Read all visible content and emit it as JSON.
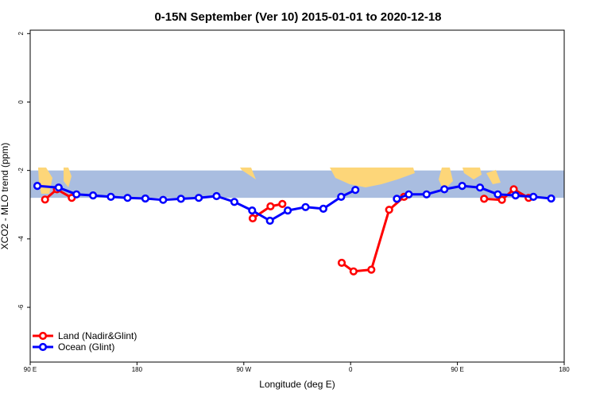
{
  "chart_data": {
    "type": "line",
    "title": "0-15N September (Ver 10)   2015-01-01 to 2020-12-18",
    "xlabel": "Longitude (deg E)",
    "ylabel": "XCO2 - MLO trend (ppm)",
    "xlim": [
      90,
      540
    ],
    "ylim": [
      -7.6,
      2.1
    ],
    "x_ticks": [
      {
        "value": 90,
        "label": "90 E"
      },
      {
        "value": 180,
        "label": "180"
      },
      {
        "value": 270,
        "label": "90 W"
      },
      {
        "value": 360,
        "label": "0"
      },
      {
        "value": 450,
        "label": "90 E"
      },
      {
        "value": 540,
        "label": "180"
      }
    ],
    "y_ticks": [
      {
        "value": 2,
        "label": "2"
      },
      {
        "value": 0,
        "label": "0"
      },
      {
        "value": -2,
        "label": "-2"
      },
      {
        "value": -4,
        "label": "-4"
      },
      {
        "value": -6,
        "label": "-6"
      }
    ],
    "map_band": {
      "ylim": [
        -2.0,
        -2.8
      ],
      "ocean_color": "#a9bde0",
      "land_color": "#fdd679"
    },
    "legend_position": "bottom-left",
    "series": [
      {
        "name": "Land (Nadir&Glint)",
        "color": "#ff0000",
        "segments": [
          [
            [
              102.5,
              -2.85
            ],
            [
              112.5,
              -2.55
            ],
            [
              125,
              -2.8
            ]
          ],
          [
            [
              277.5,
              -3.4
            ],
            [
              292.5,
              -3.05
            ],
            [
              302.5,
              -2.98
            ]
          ],
          [
            [
              352.5,
              -4.7
            ],
            [
              362.5,
              -4.95
            ],
            [
              377.5,
              -4.9
            ],
            [
              392.5,
              -3.15
            ],
            [
              405,
              -2.77
            ]
          ],
          [
            [
              472.5,
              -2.83
            ],
            [
              487.5,
              -2.86
            ],
            [
              497.5,
              -2.55
            ],
            [
              510,
              -2.8
            ]
          ]
        ]
      },
      {
        "name": "Ocean (Glint)",
        "color": "#0000ff",
        "segments": [
          [
            [
              96,
              -2.45
            ],
            [
              114,
              -2.5
            ],
            [
              129,
              -2.7
            ],
            [
              143,
              -2.73
            ],
            [
              158,
              -2.77
            ],
            [
              172,
              -2.8
            ],
            [
              187,
              -2.82
            ],
            [
              202,
              -2.86
            ],
            [
              217,
              -2.83
            ],
            [
              232,
              -2.8
            ],
            [
              247,
              -2.75
            ],
            [
              262,
              -2.92
            ],
            [
              277,
              -3.17
            ],
            [
              292,
              -3.47
            ],
            [
              307,
              -3.17
            ],
            [
              322,
              -3.07
            ],
            [
              337,
              -3.12
            ],
            [
              352,
              -2.77
            ],
            [
              364,
              -2.57
            ]
          ],
          [
            [
              399,
              -2.83
            ],
            [
              409,
              -2.7
            ],
            [
              424,
              -2.7
            ],
            [
              439,
              -2.55
            ],
            [
              454,
              -2.45
            ],
            [
              469,
              -2.5
            ],
            [
              484,
              -2.7
            ],
            [
              499,
              -2.73
            ],
            [
              514,
              -2.77
            ],
            [
              529,
              -2.82
            ]
          ]
        ]
      }
    ]
  }
}
